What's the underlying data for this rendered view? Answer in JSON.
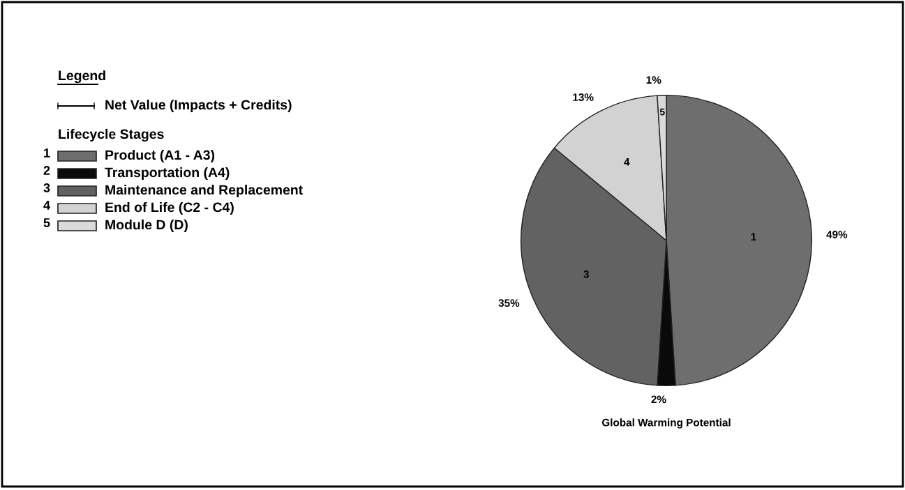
{
  "chart_data": {
    "type": "pie",
    "title": "Global Warming Potential",
    "categories": [
      "Product (A1 - A3)",
      "Transportation (A4)",
      "Maintenance and Replacement",
      "End of Life (C2 - C4)",
      "Module D (D)"
    ],
    "values": [
      49,
      2,
      35,
      13,
      1
    ],
    "value_labels": [
      "49%",
      "2%",
      "35%",
      "13%",
      "1%"
    ],
    "colors": [
      "#6e6e6e",
      "#0a0a0a",
      "#626262",
      "#d2d2d2",
      "#dadada"
    ],
    "legend": "left",
    "legend_title": "Lifecycle Stages",
    "annotations": [
      "Legend",
      "Net Value (Impacts + Credits)",
      {
        "text": "1",
        "x": "Product (A1 - A3)"
      },
      {
        "text": "2",
        "x": "Transportation (A4)"
      },
      {
        "text": "3",
        "x": "Maintenance and Replacement"
      },
      {
        "text": "4",
        "x": "End of Life (C2 - C4)"
      },
      {
        "text": "5",
        "x": "Module D (D)"
      }
    ]
  }
}
